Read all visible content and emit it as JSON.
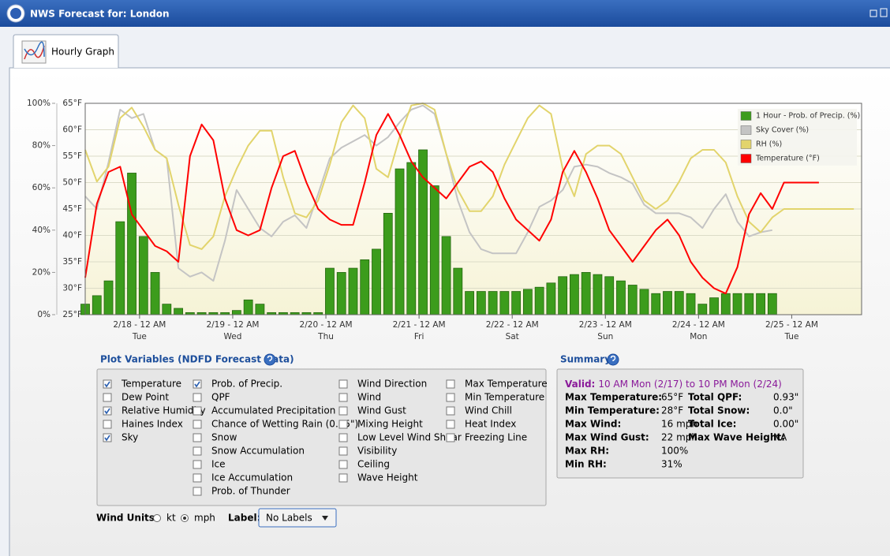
{
  "window_title": "NWS Forecast for: London",
  "tab_label": "Hourly Graph",
  "chart_data": {
    "type": "combo",
    "x": [
      0,
      3,
      6,
      9,
      12,
      15,
      18,
      21,
      24,
      27,
      30,
      33,
      36,
      39,
      42,
      45,
      48,
      51,
      54,
      57,
      60,
      63,
      66,
      69,
      72,
      75,
      78,
      81,
      84,
      87,
      90,
      93,
      96,
      99,
      102,
      105,
      108,
      111,
      114,
      117,
      120,
      123,
      126,
      129,
      132,
      135,
      138,
      141,
      144,
      147,
      150,
      153,
      156,
      159,
      162,
      165,
      168,
      171,
      174,
      177,
      180,
      183,
      186,
      189,
      192,
      195,
      198
    ],
    "xlim": [
      0,
      200
    ],
    "xticks": [
      {
        "value": 14,
        "label": "2/18 - 12 AM"
      },
      {
        "value": 38,
        "label": "2/19 - 12 AM"
      },
      {
        "value": 62,
        "label": "2/20 - 12 AM"
      },
      {
        "value": 86,
        "label": "2/21 - 12 AM"
      },
      {
        "value": 110,
        "label": "2/22 - 12 AM"
      },
      {
        "value": 134,
        "label": "2/23 - 12 AM"
      },
      {
        "value": 158,
        "label": "2/24 - 12 AM"
      },
      {
        "value": 182,
        "label": "2/25 - 12 AM"
      }
    ],
    "xtick_days": [
      "Tue",
      "Wed",
      "Thu",
      "Fri",
      "Sat",
      "Sun",
      "Mon",
      "Tue"
    ],
    "ylim": [
      0,
      100
    ],
    "yticks": [
      {
        "value": 0,
        "label": "0%"
      },
      {
        "value": 20,
        "label": "20%"
      },
      {
        "value": 40,
        "label": "40%"
      },
      {
        "value": 60,
        "label": "60%"
      },
      {
        "value": 80,
        "label": "80%"
      },
      {
        "value": 100,
        "label": "100%"
      }
    ],
    "y2lim": [
      25,
      65
    ],
    "y2ticks": [
      {
        "value": 25,
        "label": "25°F"
      },
      {
        "value": 30,
        "label": "30°F"
      },
      {
        "value": 35,
        "label": "35°F"
      },
      {
        "value": 40,
        "label": "40°F"
      },
      {
        "value": 45,
        "label": "45°F"
      },
      {
        "value": 50,
        "label": "50°F"
      },
      {
        "value": 55,
        "label": "55°F"
      },
      {
        "value": 60,
        "label": "60°F"
      },
      {
        "value": 65,
        "label": "65°F"
      }
    ],
    "grid": true,
    "legend": "top-right",
    "series": [
      {
        "name": "1 Hour - Prob. of Precip. (%)",
        "type": "bar",
        "color": "#3c9c1c",
        "values": [
          5,
          9,
          16,
          44,
          67,
          37,
          20,
          5,
          3,
          1,
          1,
          1,
          1,
          2,
          7,
          5,
          1,
          1,
          1,
          1,
          1,
          22,
          20,
          22,
          26,
          31,
          48,
          69,
          72,
          78,
          61,
          37,
          22,
          11,
          11,
          11,
          11,
          11,
          12,
          13,
          15,
          18,
          19,
          20,
          19,
          18,
          16,
          14,
          12,
          10,
          11,
          11,
          10,
          5,
          8,
          10,
          10,
          10,
          10,
          10,
          null,
          null,
          null,
          null,
          null,
          null,
          null
        ]
      },
      {
        "name": "Sky Cover (%)",
        "type": "line",
        "color": "#c4c4c4",
        "values": [
          56,
          50,
          72,
          97,
          93,
          95,
          78,
          74,
          22,
          18,
          20,
          16,
          35,
          59,
          50,
          41,
          37,
          44,
          47,
          41,
          57,
          74,
          79,
          82,
          85,
          80,
          84,
          91,
          97,
          99,
          95,
          76,
          54,
          39,
          31,
          29,
          29,
          29,
          39,
          51,
          54,
          59,
          70,
          71,
          70,
          67,
          65,
          62,
          52,
          48,
          48,
          48,
          46,
          41,
          50,
          57,
          44,
          37,
          39,
          40,
          null,
          null,
          null,
          null,
          null,
          null,
          null
        ]
      },
      {
        "name": "RH (%)",
        "type": "line",
        "color": "#e2d46c",
        "values": [
          78,
          63,
          70,
          93,
          98,
          89,
          78,
          74,
          52,
          33,
          31,
          37,
          56,
          69,
          80,
          87,
          87,
          65,
          48,
          46,
          54,
          71,
          91,
          99,
          93,
          69,
          65,
          84,
          99,
          100,
          97,
          76,
          59,
          49,
          49,
          56,
          71,
          82,
          93,
          99,
          95,
          69,
          56,
          76,
          80,
          80,
          76,
          65,
          54,
          50,
          54,
          63,
          74,
          78,
          78,
          72,
          56,
          44,
          39,
          46,
          50,
          50,
          50,
          50,
          50,
          50,
          50
        ]
      },
      {
        "name": "Temperature (°F)",
        "type": "line",
        "axis": "y2",
        "color": "#ff0000",
        "values": [
          32,
          46,
          52,
          53,
          44,
          41,
          38,
          37,
          35,
          55,
          61,
          58,
          47,
          41,
          40,
          41,
          49,
          55,
          56,
          50,
          45,
          43,
          42,
          42,
          50,
          59,
          63,
          59,
          54,
          51,
          49,
          47,
          50,
          53,
          54,
          52,
          47,
          43,
          41,
          39,
          43,
          52,
          56,
          52,
          47,
          41,
          38,
          35,
          38,
          41,
          43,
          40,
          35,
          32,
          30,
          29,
          34,
          44,
          48,
          45,
          50,
          50,
          50,
          50,
          null,
          null,
          null
        ]
      }
    ]
  },
  "plot_variables": {
    "title": "Plot Variables (NDFD Forecast Data)",
    "columns": [
      [
        {
          "label": "Temperature",
          "checked": true
        },
        {
          "label": "Dew Point",
          "checked": false
        },
        {
          "label": "Relative Humidity",
          "checked": true
        },
        {
          "label": "Haines Index",
          "checked": false
        },
        {
          "label": "Sky",
          "checked": true
        }
      ],
      [
        {
          "label": "Prob. of Precip.",
          "checked": true
        },
        {
          "label": "QPF",
          "checked": false
        },
        {
          "label": "Accumulated Precipitation",
          "checked": false
        },
        {
          "label": "Chance of Wetting Rain (0.25\")",
          "checked": false
        },
        {
          "label": "Snow",
          "checked": false
        },
        {
          "label": "Snow Accumulation",
          "checked": false
        },
        {
          "label": "Ice",
          "checked": false
        },
        {
          "label": "Ice Accumulation",
          "checked": false
        },
        {
          "label": "Prob. of Thunder",
          "checked": false
        }
      ],
      [
        {
          "label": "Wind Direction",
          "checked": false
        },
        {
          "label": "Wind",
          "checked": false
        },
        {
          "label": "Wind Gust",
          "checked": false
        },
        {
          "label": "Mixing Height",
          "checked": false
        },
        {
          "label": "Low Level Wind Shear",
          "checked": false
        },
        {
          "label": "Visibility",
          "checked": false
        },
        {
          "label": "Ceiling",
          "checked": false
        },
        {
          "label": "Wave Height",
          "checked": false
        }
      ],
      [
        {
          "label": "Max Temperature",
          "checked": false
        },
        {
          "label": "Min Temperature",
          "checked": false
        },
        {
          "label": "Wind Chill",
          "checked": false
        },
        {
          "label": "Heat Index",
          "checked": false
        },
        {
          "label": "Freezing Line",
          "checked": false
        }
      ]
    ]
  },
  "summary": {
    "title": "Summary",
    "valid_label": "Valid:",
    "valid_range": "10 AM Mon (2/17) to 10 PM Mon (2/24)",
    "left": [
      {
        "label": "Max Temperature:",
        "value": "65°F"
      },
      {
        "label": "Min Temperature:",
        "value": "28°F"
      },
      {
        "label": "Max Wind:",
        "value": "16 mph"
      },
      {
        "label": "Max Wind Gust:",
        "value": "22 mph"
      },
      {
        "label": "Max RH:",
        "value": "100%"
      },
      {
        "label": "Min RH:",
        "value": "31%"
      }
    ],
    "right": [
      {
        "label": "Total QPF:",
        "value": "0.93\""
      },
      {
        "label": "Total Snow:",
        "value": "0.0\""
      },
      {
        "label": "Total Ice:",
        "value": "0.00\""
      },
      {
        "label": "Max Wave Height:",
        "value": "NA"
      }
    ]
  },
  "wind_units": {
    "label": "Wind Units:",
    "options": [
      "kt",
      "mph"
    ],
    "selected": 1
  },
  "label_select": {
    "label": "Label:",
    "value": "No Labels"
  }
}
